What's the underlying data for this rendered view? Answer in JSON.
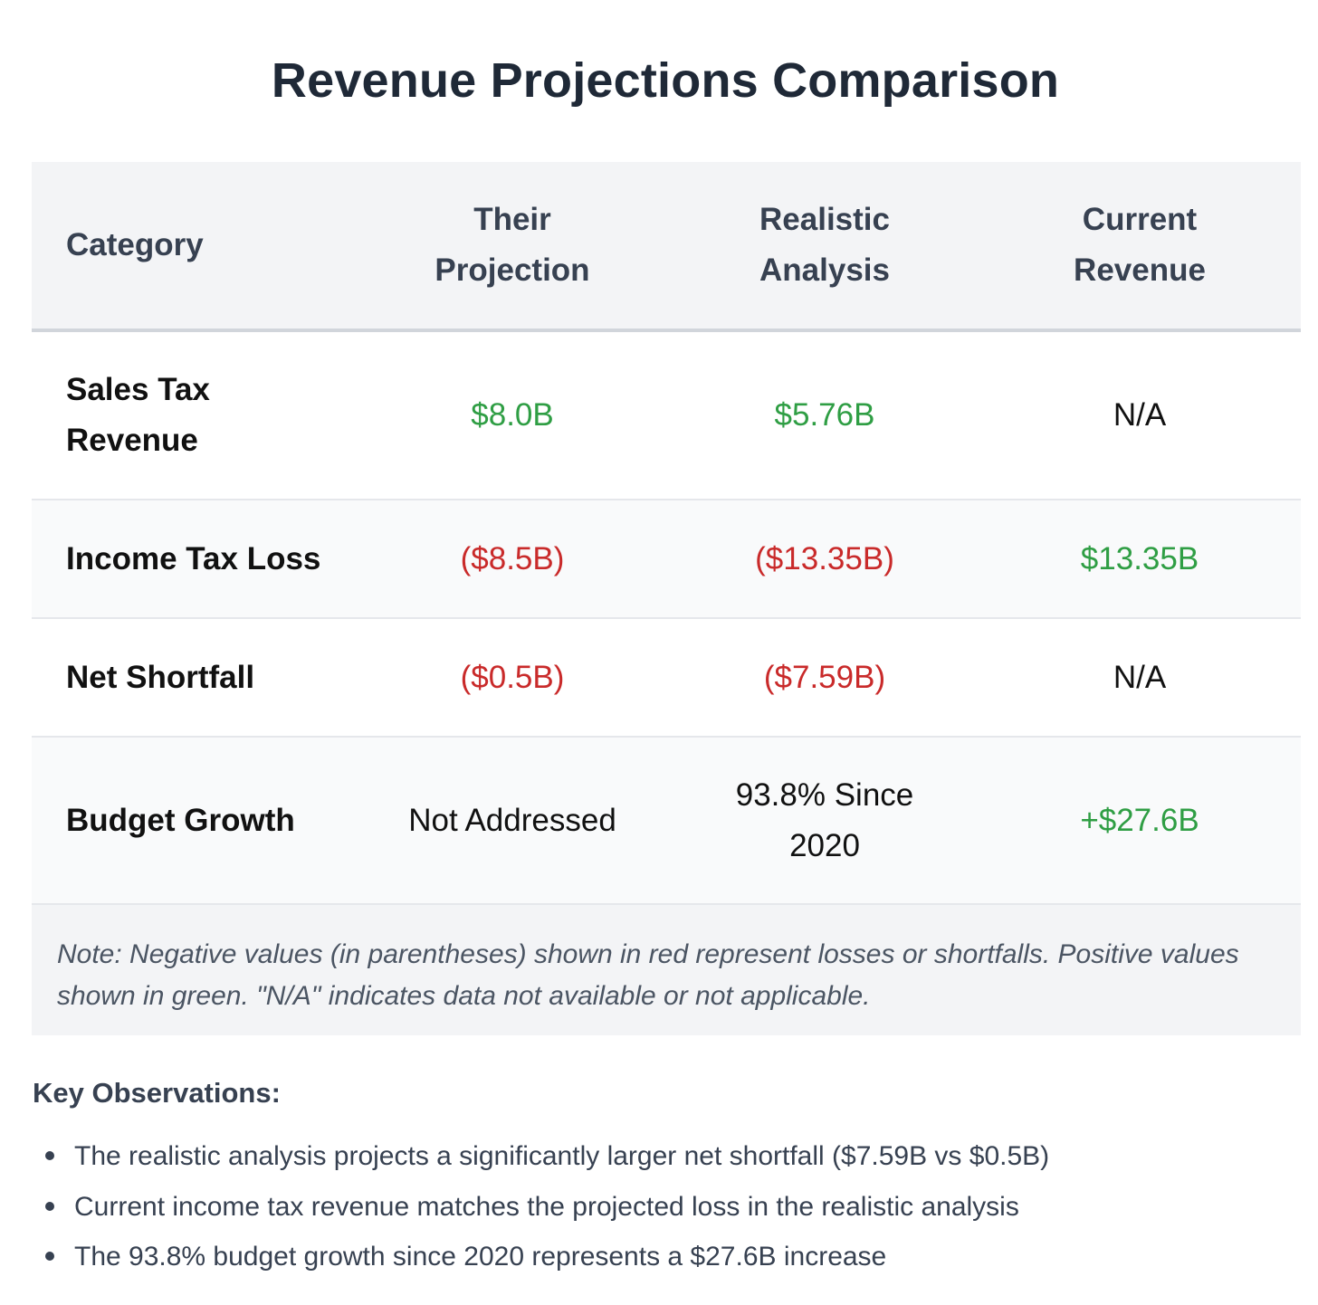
{
  "page": {
    "title": "Revenue Projections Comparison"
  },
  "table": {
    "headers": {
      "category": "Category",
      "their_projection": [
        "Their",
        "Projection"
      ],
      "realistic_analysis": [
        "Realistic",
        "Analysis"
      ],
      "current_revenue": [
        "Current",
        "Revenue"
      ]
    },
    "rows": [
      {
        "category": [
          "Sales Tax",
          "Revenue"
        ],
        "their_projection": "$8.0B",
        "realistic_analysis": [
          "$5.76B"
        ],
        "current_revenue": "N/A"
      },
      {
        "category": [
          "Income Tax Loss"
        ],
        "their_projection": "($8.5B)",
        "realistic_analysis": [
          "($13.35B)"
        ],
        "current_revenue": "$13.35B"
      },
      {
        "category": [
          "Net Shortfall"
        ],
        "their_projection": "($0.5B)",
        "realistic_analysis": [
          "($7.59B)"
        ],
        "current_revenue": "N/A"
      },
      {
        "category": [
          "Budget Growth"
        ],
        "their_projection": "Not Addressed",
        "realistic_analysis": [
          "93.8% Since",
          "2020"
        ],
        "current_revenue": "+$27.6B"
      }
    ],
    "note": "Note: Negative values (in parentheses) shown in red represent losses or shortfalls. Positive values shown in green. \"N/A\" indicates data not available or not applicable."
  },
  "colors": {
    "positive": "#2f9e44",
    "negative": "#c92a2a",
    "header_bg": "#f3f4f6",
    "title": "#1f2937"
  },
  "observations": {
    "title": "Key Observations:",
    "items": [
      "The realistic analysis projects a significantly larger net shortfall ($7.59B vs $0.5B)",
      "Current income tax revenue matches the projected loss in the realistic analysis",
      "The 93.8% budget growth since 2020 represents a $27.6B increase"
    ]
  }
}
